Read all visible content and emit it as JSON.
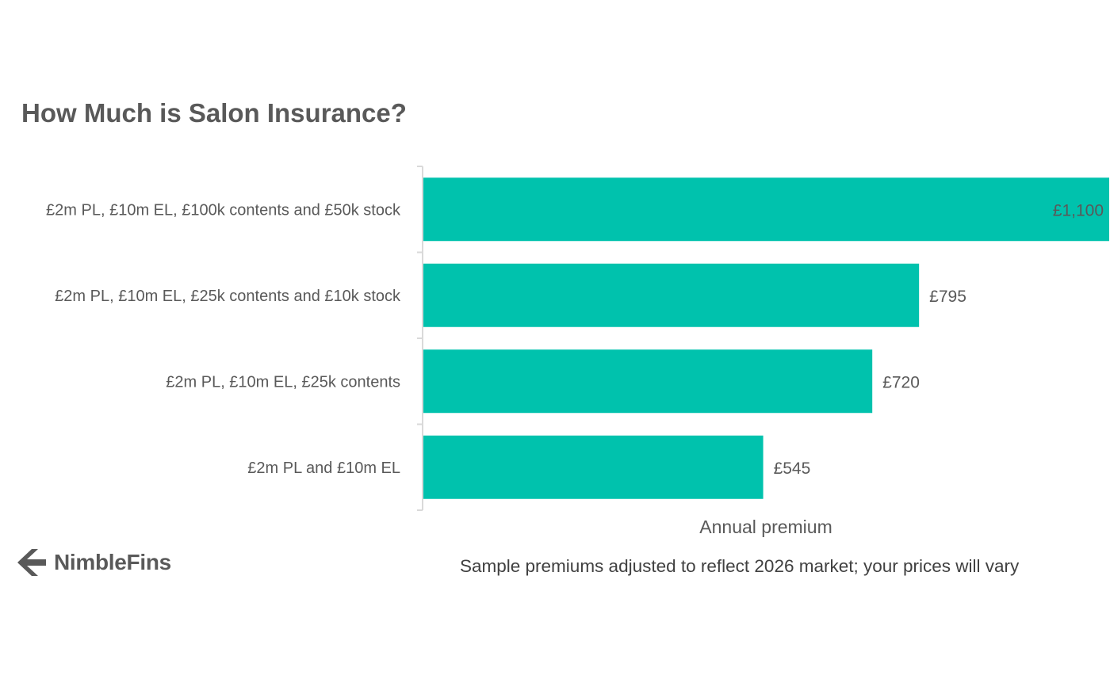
{
  "chart_data": {
    "type": "bar",
    "orientation": "horizontal",
    "title": "How Much is Salon Insurance?",
    "categories": [
      "£2m PL, £10m EL, £100k contents and £50k stock",
      "£2m PL, £10m EL, £25k contents and £10k stock",
      "£2m PL, £10m EL, £25k contents",
      "£2m PL and £10m EL"
    ],
    "values": [
      1100,
      795,
      720,
      545
    ],
    "value_labels": [
      "£1,100",
      "£795",
      "£720",
      "£545"
    ],
    "xlabel": "Annual premium",
    "ylabel": "",
    "xlim": [
      0,
      1100
    ],
    "grid": false,
    "bar_color": "#00C2AD"
  },
  "footnote": "Sample premiums adjusted to reflect  2026 market; your prices will vary",
  "logo": {
    "text": "NimbleFins",
    "icon": "nimblefins-chevron-icon"
  }
}
